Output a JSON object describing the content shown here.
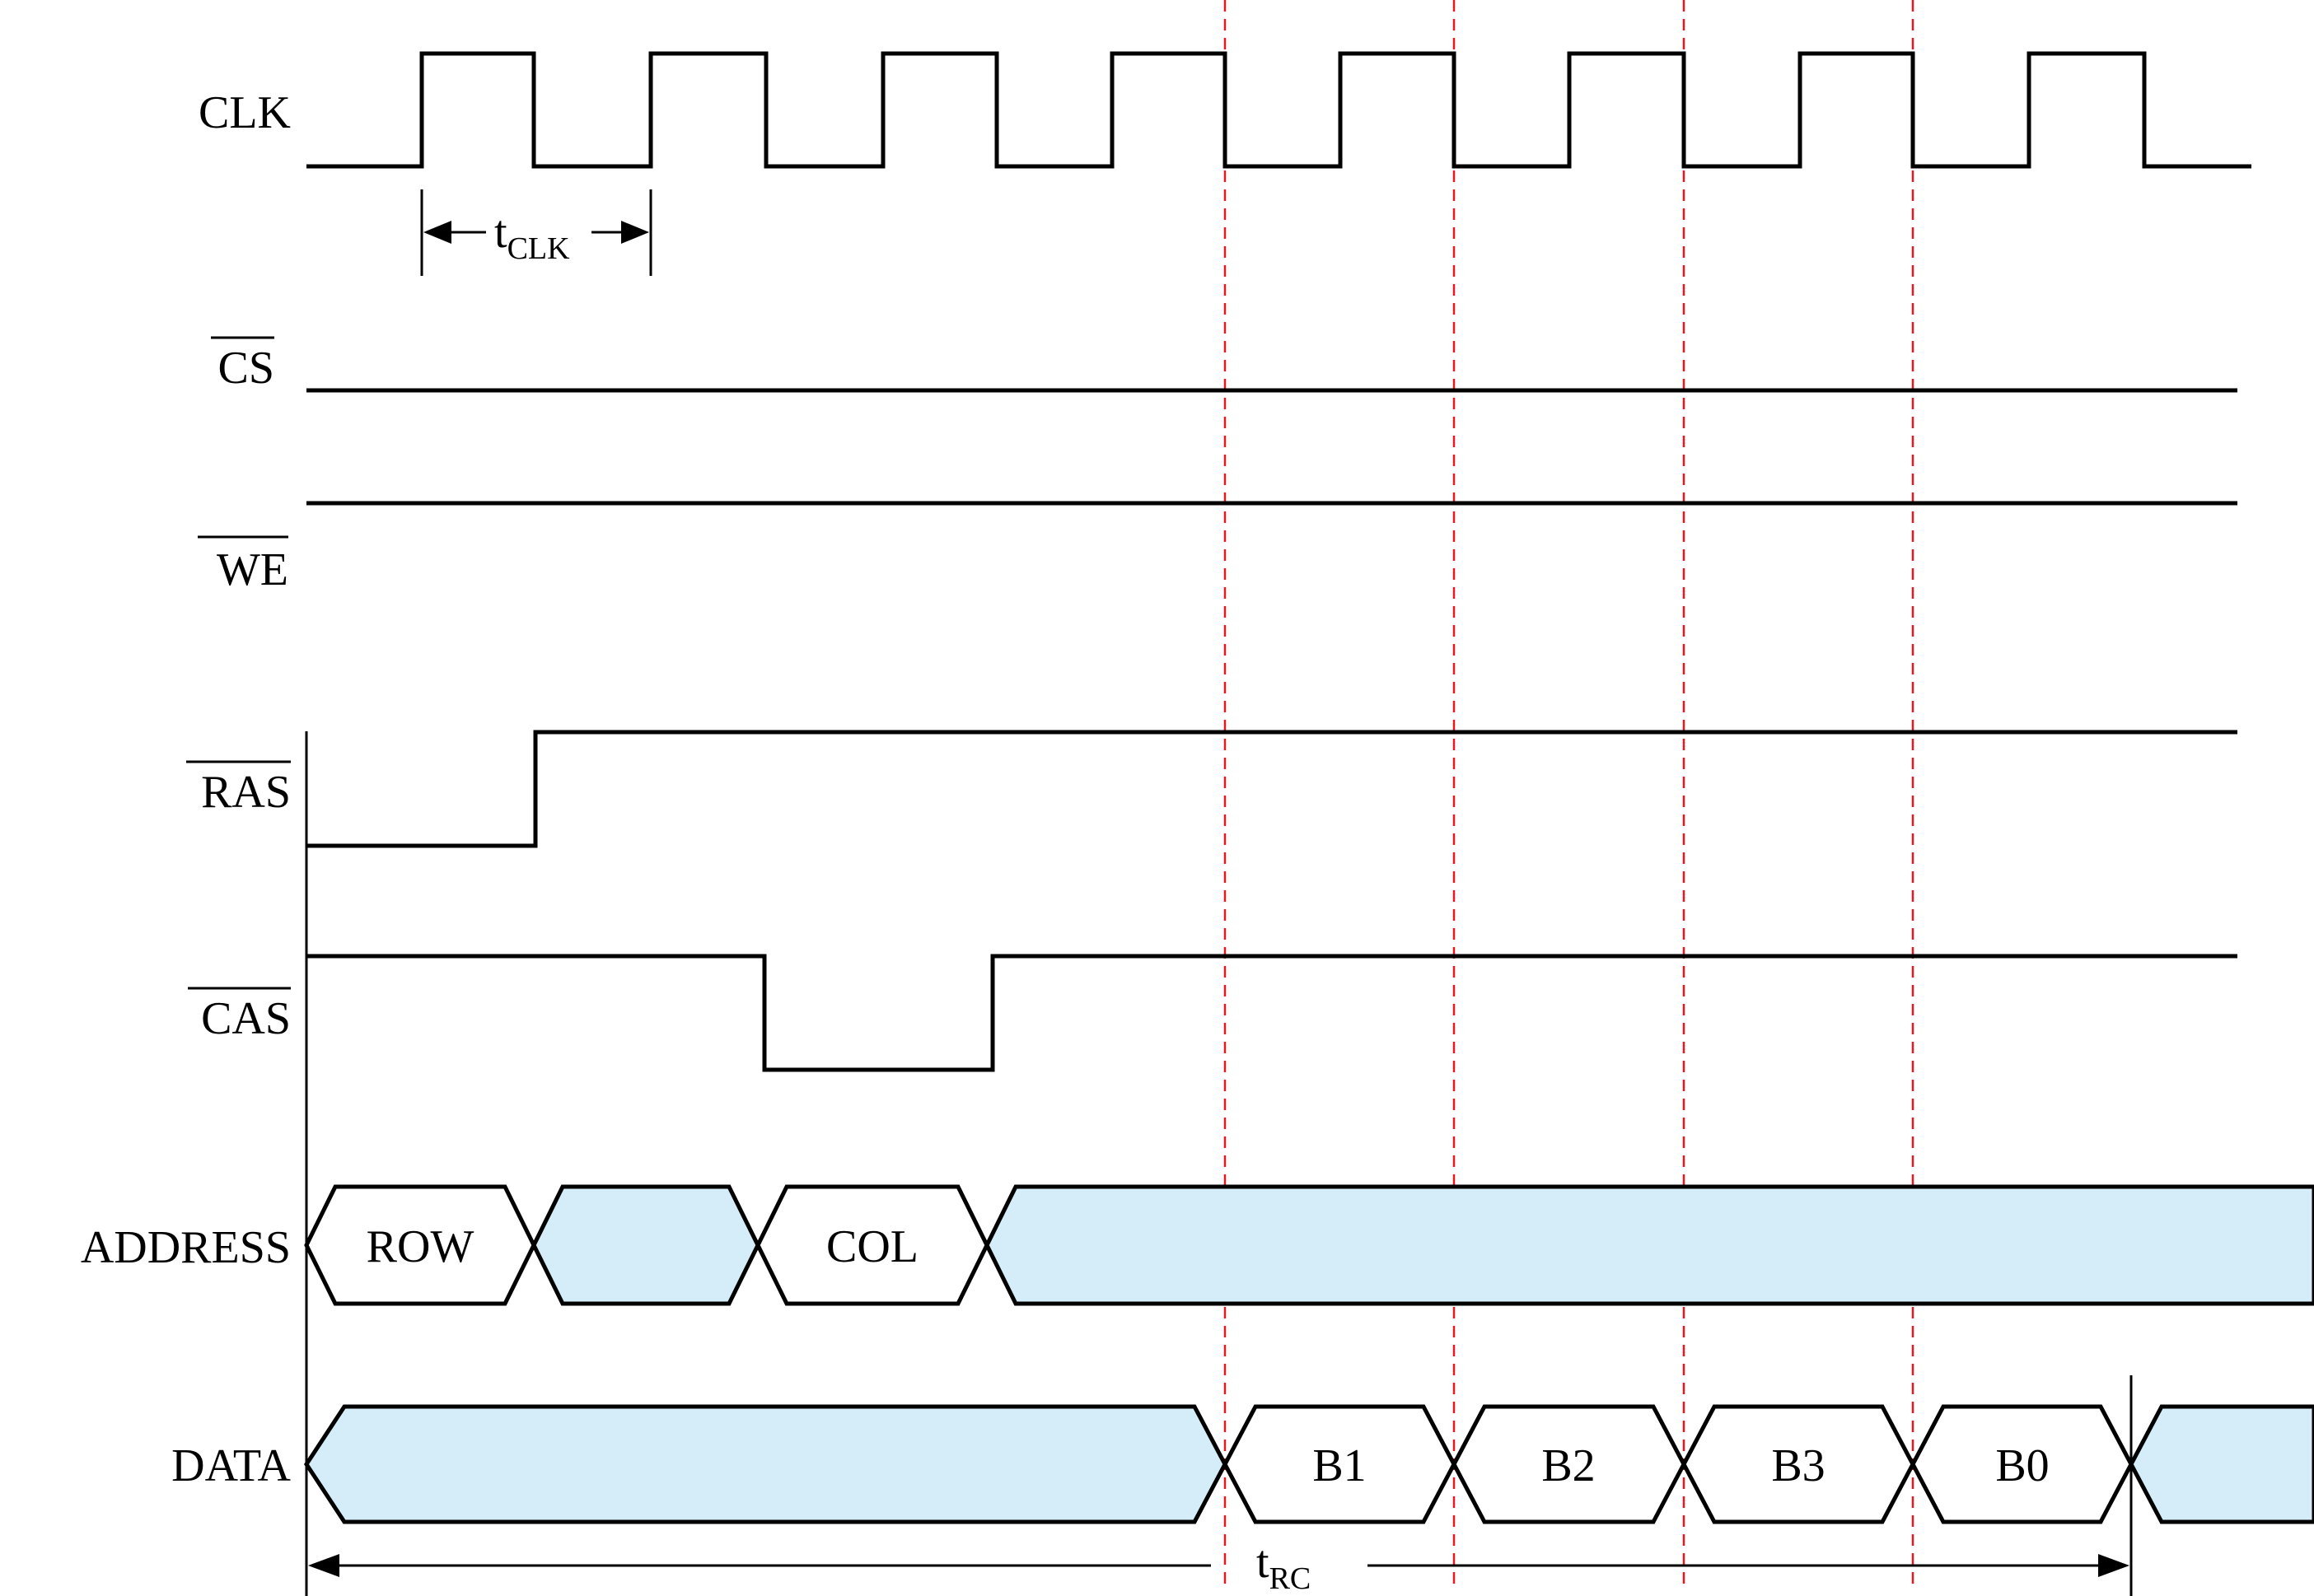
{
  "signals": {
    "clk": {
      "label": "CLK",
      "overbar": false
    },
    "cs": {
      "label": "CS",
      "overbar": true
    },
    "we": {
      "label": "WE",
      "overbar": true
    },
    "ras": {
      "label": "RAS",
      "overbar": true
    },
    "cas": {
      "label": "CAS",
      "overbar": true
    },
    "address": {
      "label": "ADDRESS",
      "overbar": false
    },
    "data": {
      "label": "DATA",
      "overbar": false
    }
  },
  "address_cells": [
    "ROW",
    "COL"
  ],
  "data_cells": [
    "B1",
    "B2",
    "B3",
    "B0"
  ],
  "timing": {
    "t_clk": {
      "base": "t",
      "sub": "CLK"
    },
    "t_rc": {
      "base": "t",
      "sub": "RC"
    }
  },
  "colors": {
    "line": "#000000",
    "bus_fill_dontcare": "#d4edf9",
    "bus_fill_valid": "#ffffff",
    "guide": "#e8181e"
  }
}
